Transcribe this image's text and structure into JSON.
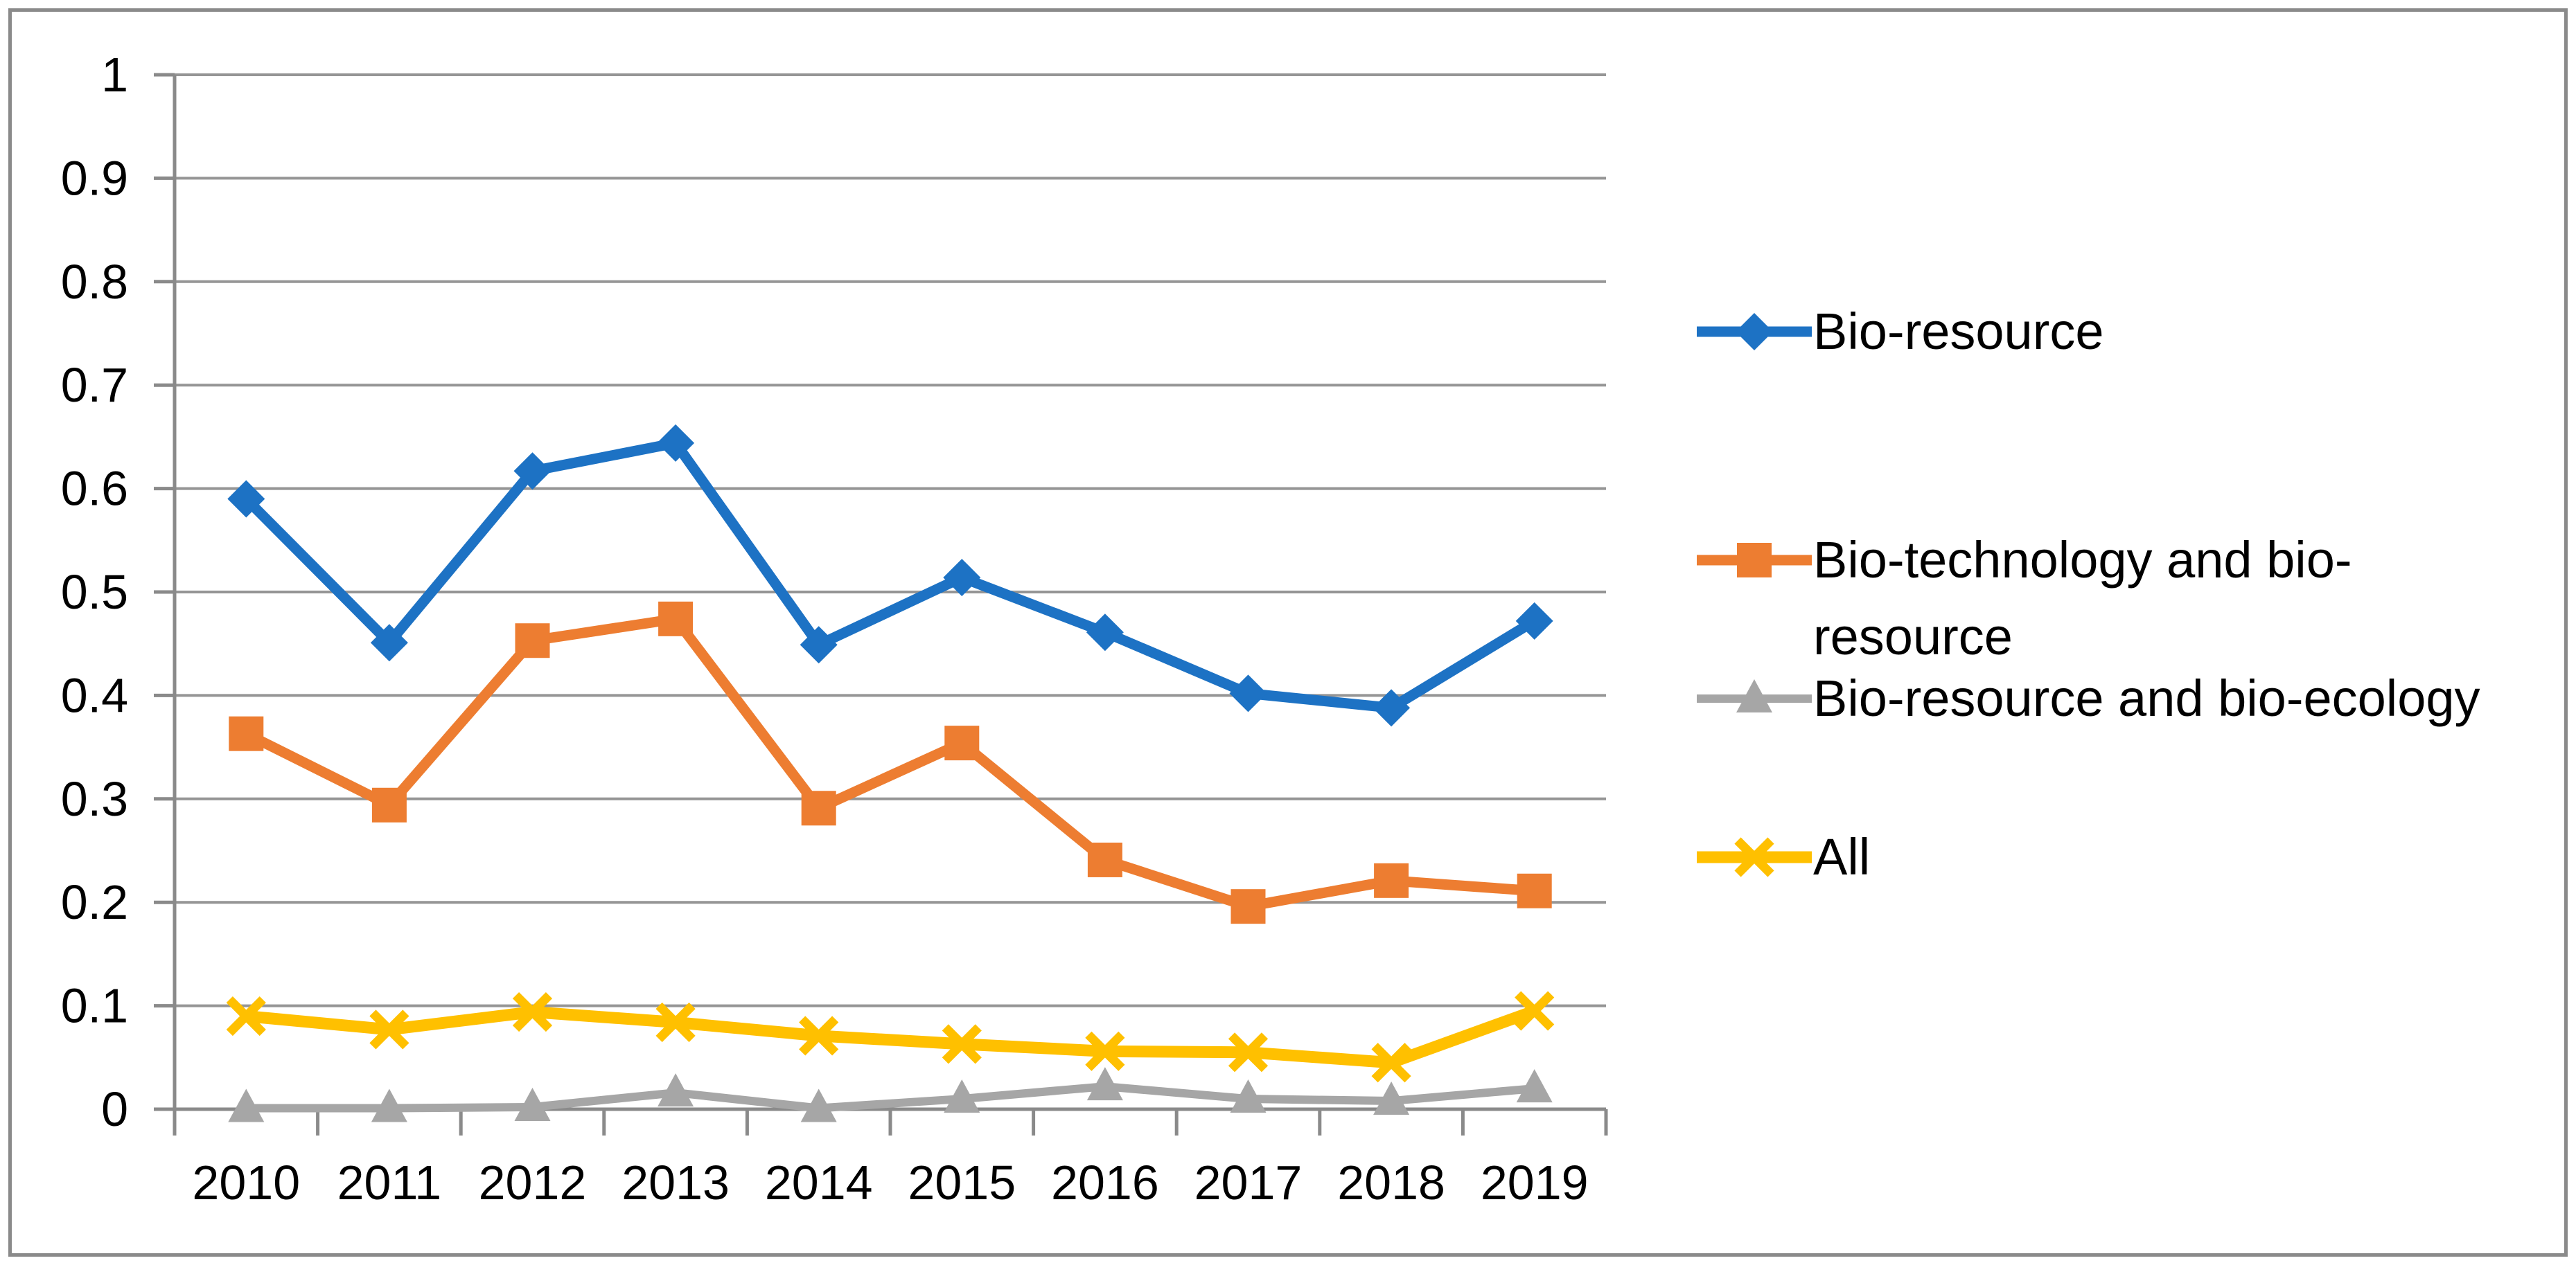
{
  "chart_data": {
    "type": "line",
    "title": "",
    "xlabel": "",
    "ylabel": "",
    "categories": [
      "2010",
      "2011",
      "2012",
      "2013",
      "2014",
      "2015",
      "2016",
      "2017",
      "2018",
      "2019"
    ],
    "series": [
      {
        "name": "Bio-resource",
        "color": "#1D72C4",
        "marker": "diamond",
        "values": [
          0.59,
          0.451,
          0.617,
          0.644,
          0.449,
          0.514,
          0.461,
          0.402,
          0.388,
          0.472
        ]
      },
      {
        "name": "Bio-technology and bio-resource",
        "color": "#ED7D31",
        "marker": "square",
        "values": [
          0.363,
          0.294,
          0.453,
          0.474,
          0.291,
          0.354,
          0.241,
          0.196,
          0.221,
          0.211
        ]
      },
      {
        "name": "Bio-resource and bio-ecology",
        "color": "#A6A6A6",
        "marker": "triangle",
        "values": [
          0.001,
          0.001,
          0.002,
          0.016,
          0.001,
          0.01,
          0.022,
          0.01,
          0.008,
          0.02
        ]
      },
      {
        "name": "All",
        "color": "#FFC000",
        "marker": "x",
        "values": [
          0.09,
          0.077,
          0.094,
          0.084,
          0.071,
          0.063,
          0.056,
          0.055,
          0.045,
          0.095
        ]
      }
    ],
    "ylim": [
      0,
      1
    ],
    "y_ticks": [
      {
        "label": "1",
        "value": 1.0
      },
      {
        "label": "0.9",
        "value": 0.9
      },
      {
        "label": "0.8",
        "value": 0.8
      },
      {
        "label": "0.7",
        "value": 0.7
      },
      {
        "label": "0.6",
        "value": 0.6
      },
      {
        "label": "0.5",
        "value": 0.5
      },
      {
        "label": "0.4",
        "value": 0.4
      },
      {
        "label": "0.3",
        "value": 0.3
      },
      {
        "label": "0.2",
        "value": 0.2
      },
      {
        "label": "0.1",
        "value": 0.1
      },
      {
        "label": "0",
        "value": 0.0
      }
    ],
    "grid": true,
    "legend_position": "right",
    "colors": {
      "background": "#FFFFFF",
      "border": "#8A8A8A",
      "gridline": "#959595",
      "axis": "#8A8A8A",
      "text": "#000000"
    }
  }
}
